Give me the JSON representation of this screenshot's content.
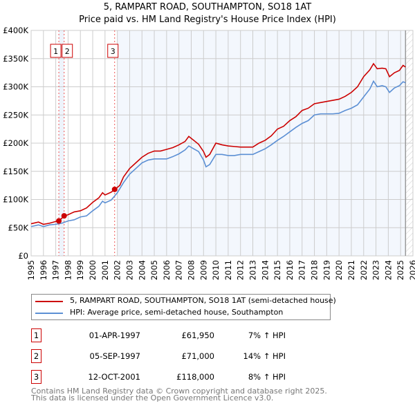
{
  "chart_data": {
    "type": "line",
    "title": "5, RAMPART ROAD, SOUTHAMPTON, SO18 1AT",
    "subtitle": "Price paid vs. HM Land Registry's House Price Index (HPI)",
    "xlim": [
      1995,
      2026
    ],
    "ylim": [
      0,
      400000
    ],
    "x_ticks": [
      "1995",
      "1996",
      "1997",
      "1998",
      "1999",
      "2000",
      "2001",
      "2002",
      "2003",
      "2004",
      "2005",
      "2006",
      "2007",
      "2008",
      "2009",
      "2010",
      "2011",
      "2012",
      "2013",
      "2014",
      "2015",
      "2016",
      "2017",
      "2018",
      "2019",
      "2020",
      "2021",
      "2022",
      "2023",
      "2024",
      "2025",
      "2026"
    ],
    "y_ticks": [
      {
        "v": 0,
        "label": "£0"
      },
      {
        "v": 50000,
        "label": "£50K"
      },
      {
        "v": 100000,
        "label": "£100K"
      },
      {
        "v": 150000,
        "label": "£150K"
      },
      {
        "v": 200000,
        "label": "£200K"
      },
      {
        "v": 250000,
        "label": "£250K"
      },
      {
        "v": 300000,
        "label": "£300K"
      },
      {
        "v": 350000,
        "label": "£350K"
      },
      {
        "v": 400000,
        "label": "£400K"
      }
    ],
    "grid": true,
    "series": [
      {
        "name": "5, RAMPART ROAD, SOUTHAMPTON, SO18 1AT (semi-detached house)",
        "color": "#cc0000",
        "x": [
          1995,
          1995.6,
          1996,
          1996.5,
          1997,
          1997.25,
          1997.7,
          1998,
          1998.5,
          1999,
          1999.5,
          2000,
          2000.5,
          2000.8,
          2001,
          2001.5,
          2001.8,
          2002.2,
          2002.5,
          2003,
          2003.5,
          2004,
          2004.5,
          2005,
          2005.5,
          2006,
          2006.5,
          2007,
          2007.5,
          2007.8,
          2008.2,
          2008.6,
          2009,
          2009.2,
          2009.5,
          2010,
          2010.5,
          2011,
          2011.5,
          2012,
          2012.5,
          2013,
          2013.5,
          2014,
          2014.5,
          2015,
          2015.5,
          2016,
          2016.5,
          2017,
          2017.5,
          2018,
          2018.5,
          2019,
          2019.5,
          2020,
          2020.5,
          2021,
          2021.5,
          2022,
          2022.5,
          2022.8,
          2023.1,
          2023.5,
          2023.8,
          2024.1,
          2024.5,
          2024.9,
          2025.2,
          2025.4
        ],
        "y": [
          57000,
          60000,
          56000,
          58000,
          61000,
          61950,
          71000,
          73000,
          78000,
          80000,
          85000,
          95000,
          103000,
          112000,
          108000,
          113000,
          118000,
          125000,
          140000,
          155000,
          165000,
          175000,
          182000,
          186000,
          186000,
          189000,
          192000,
          197000,
          203000,
          212000,
          205000,
          198000,
          185000,
          175000,
          180000,
          200000,
          197000,
          195000,
          194000,
          193000,
          193000,
          193000,
          200000,
          205000,
          213000,
          225000,
          230000,
          240000,
          247000,
          258000,
          262000,
          270000,
          272000,
          274000,
          276000,
          278000,
          283000,
          290000,
          300000,
          318000,
          330000,
          341000,
          332000,
          333000,
          332000,
          318000,
          325000,
          329000,
          338000,
          335000
        ]
      },
      {
        "name": "HPI: Average price, semi-detached house, Southampton",
        "color": "#5b8fd4",
        "x": [
          1995,
          1995.6,
          1996,
          1996.5,
          1997,
          1997.5,
          1998,
          1998.5,
          1999,
          1999.5,
          2000,
          2000.5,
          2000.8,
          2001,
          2001.5,
          2002,
          2002.5,
          2003,
          2003.5,
          2004,
          2004.5,
          2005,
          2005.5,
          2006,
          2006.5,
          2007,
          2007.5,
          2007.8,
          2008.2,
          2008.6,
          2009,
          2009.2,
          2009.5,
          2010,
          2010.5,
          2011,
          2011.5,
          2012,
          2012.5,
          2013,
          2013.5,
          2014,
          2014.5,
          2015,
          2015.5,
          2016,
          2016.5,
          2017,
          2017.5,
          2018,
          2018.5,
          2019,
          2019.5,
          2020,
          2020.5,
          2021,
          2021.5,
          2022,
          2022.5,
          2022.8,
          2023.1,
          2023.5,
          2023.8,
          2024.1,
          2024.5,
          2024.9,
          2025.2,
          2025.4
        ],
        "y": [
          52000,
          55000,
          52000,
          55000,
          56000,
          58000,
          62000,
          64000,
          69000,
          71000,
          80000,
          88000,
          97000,
          94000,
          99000,
          112000,
          130000,
          145000,
          155000,
          165000,
          170000,
          172000,
          172000,
          172000,
          176000,
          181000,
          188000,
          195000,
          190000,
          185000,
          170000,
          158000,
          162000,
          180000,
          180000,
          178000,
          178000,
          180000,
          180000,
          180000,
          185000,
          190000,
          197000,
          205000,
          212000,
          220000,
          228000,
          235000,
          240000,
          250000,
          252000,
          252000,
          252000,
          253000,
          258000,
          262000,
          268000,
          282000,
          296000,
          310000,
          300000,
          302000,
          300000,
          290000,
          298000,
          302000,
          309000,
          307000
        ]
      }
    ],
    "sales": [
      {
        "n": "1",
        "x": 1997.25,
        "y": 61950,
        "date": "01-APR-1997",
        "price": "£61,950",
        "hpi": "7% ↑ HPI"
      },
      {
        "n": "2",
        "x": 1997.68,
        "y": 71000,
        "date": "05-SEP-1997",
        "price": "£71,000",
        "hpi": "14% ↑ HPI"
      },
      {
        "n": "3",
        "x": 2001.78,
        "y": 118000,
        "date": "12-OCT-2001",
        "price": "£118,000",
        "hpi": "8% ↑ HPI"
      }
    ],
    "legend_position": "bottom"
  },
  "footer": {
    "line1": "Contains HM Land Registry data © Crown copyright and database right 2025.",
    "line2": "This data is licensed under the Open Government Licence v3.0."
  }
}
